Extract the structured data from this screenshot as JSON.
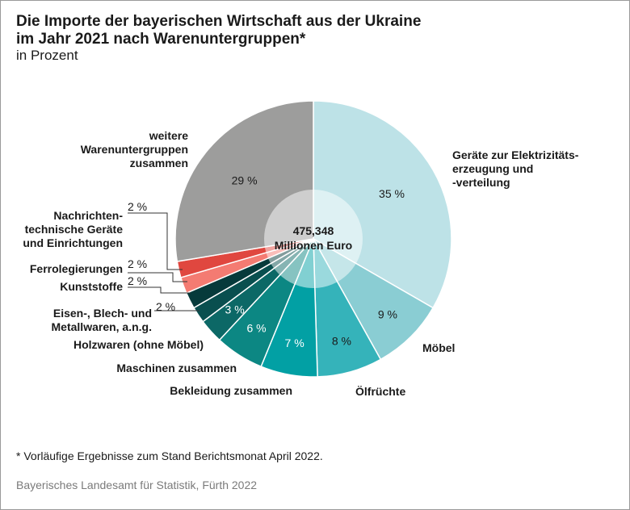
{
  "title": "Die Importe der bayerischen Wirtschaft aus der Ukraine\nim Jahr 2021 nach Warenuntergruppen*",
  "subtitle": "in Prozent",
  "footnote": "* Vorläufige Ergebnisse zum Stand Berichtsmonat April 2022.",
  "source": "Bayerisches Landesamt für Statistik, Fürth 2022",
  "chart_data": {
    "type": "pie",
    "variant": "donut",
    "unit": "%",
    "center_value": "475,348",
    "center_unit": "Millionen Euro",
    "slices": [
      {
        "label": [
          "Geräte zur Elektrizitäts-",
          "erzeugung und",
          "-verteilung"
        ],
        "value": 35,
        "value_label": "35 %",
        "color": "#bde2e7",
        "text_color": "#1a1a1a"
      },
      {
        "label": [
          "Möbel"
        ],
        "value": 9,
        "value_label": "9 %",
        "color": "#8acdd3",
        "text_color": "#1a1a1a"
      },
      {
        "label": [
          "Ölfrüchte"
        ],
        "value": 8,
        "value_label": "8 %",
        "color": "#35b3ba",
        "text_color": "#1a1a1a"
      },
      {
        "label": [
          "Bekleidung zusammen"
        ],
        "value": 7,
        "value_label": "7 %",
        "color": "#02a0a4",
        "text_color": "#ffffff"
      },
      {
        "label": [
          "Maschinen zusammen"
        ],
        "value": 6,
        "value_label": "6 %",
        "color": "#0c8783",
        "text_color": "#ffffff"
      },
      {
        "label": [
          "Holzwaren (ohne Möbel)"
        ],
        "value": 3,
        "value_label": "3 %",
        "color": "#0c6866",
        "text_color": "#ffffff"
      },
      {
        "label": [
          "Eisen-, Blech- und",
          "Metallwaren, a.n.g."
        ],
        "value": 2,
        "value_label": "2 %",
        "color": "#094f4f",
        "text_color": "#1a1a1a"
      },
      {
        "label": [
          "Kunststoffe"
        ],
        "value": 2,
        "value_label": "2 %",
        "color": "#063a3b",
        "text_color": "#1a1a1a"
      },
      {
        "label": [
          "Ferrolegierungen"
        ],
        "value": 2,
        "value_label": "2 %",
        "color": "#f47b72",
        "text_color": "#1a1a1a"
      },
      {
        "label": [
          "Nachrichten-",
          "technische Geräte",
          "und Einrichtungen"
        ],
        "value": 2,
        "value_label": "2 %",
        "color": "#e0473f",
        "text_color": "#1a1a1a"
      },
      {
        "label": [
          "weitere",
          "Warenuntergruppen",
          "zusammen"
        ],
        "value": 29,
        "value_label": "29 %",
        "color": "#9d9d9c",
        "text_color": "#1a1a1a"
      }
    ]
  }
}
